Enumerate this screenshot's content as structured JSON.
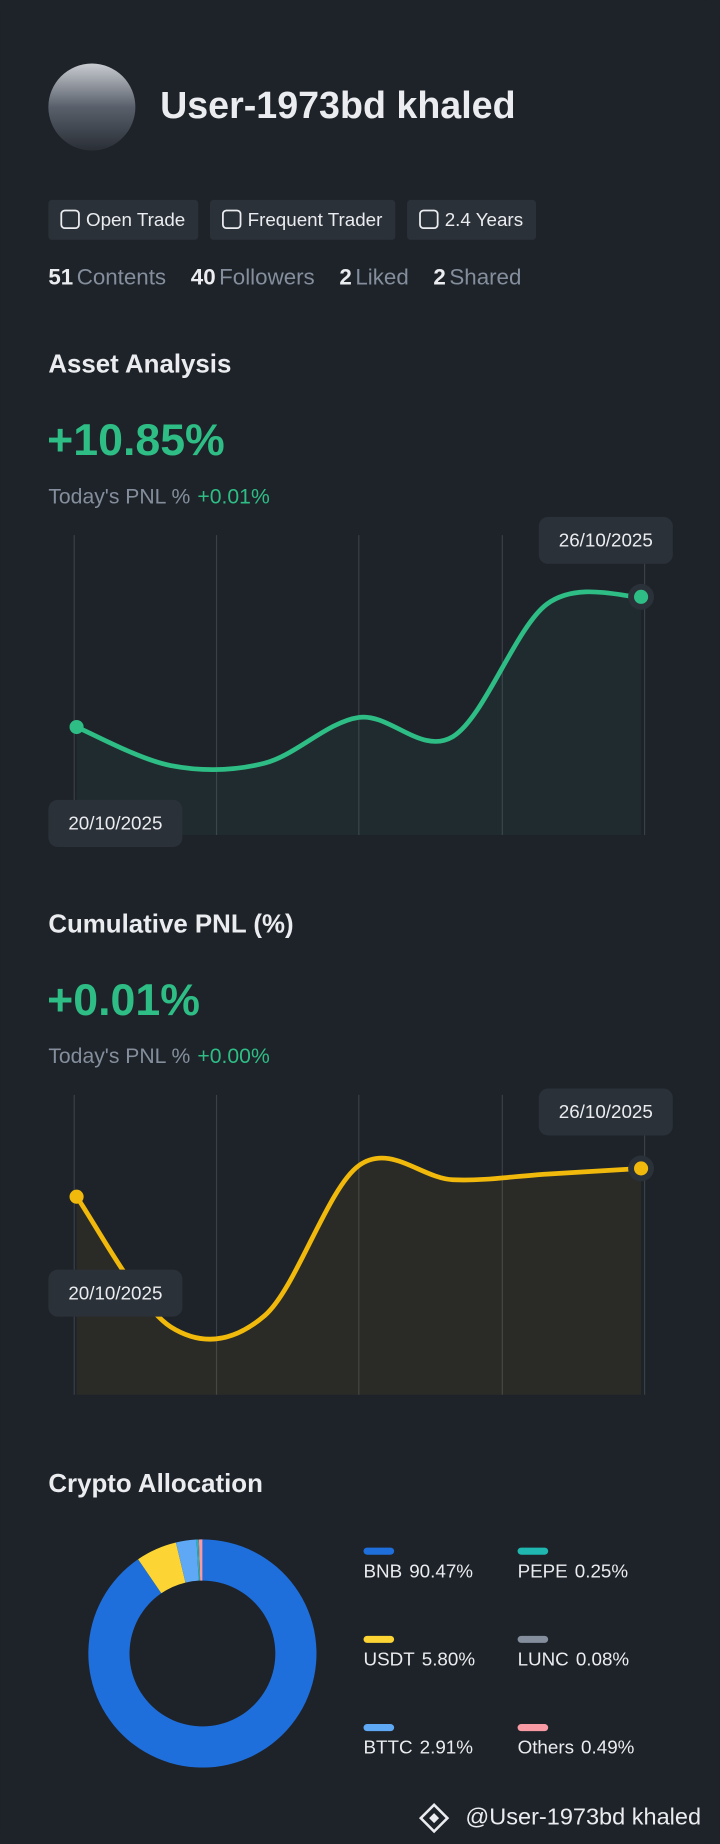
{
  "profile": {
    "name": "User-1973bd khaled",
    "tags": [
      "Open Trade",
      "Frequent Trader",
      "2.4 Years"
    ],
    "stats": [
      {
        "value": 51,
        "label": "Contents"
      },
      {
        "value": 40,
        "label": "Followers"
      },
      {
        "value": 2,
        "label": "Liked"
      },
      {
        "value": 2,
        "label": "Shared"
      }
    ]
  },
  "chart_data": [
    {
      "type": "line",
      "title": "Asset Analysis",
      "headline": "+10.85%",
      "pnl_label": "Today's PNL %",
      "pnl_value": "+0.01%",
      "categories": [
        "20/10/2025",
        null,
        null,
        null,
        null,
        null,
        "26/10/2025"
      ],
      "values": [
        0,
        -3.21,
        -3.01,
        0.8,
        -0.8,
        10.25,
        10.85
      ],
      "ylim": [
        -9,
        16
      ],
      "color": "#2ebd85"
    },
    {
      "type": "line",
      "title": "Cumulative PNL (%)",
      "headline": "+0.01%",
      "pnl_label": "Today's PNL %",
      "pnl_value": "+0.00%",
      "categories": [
        "20/10/2025",
        null,
        null,
        null,
        null,
        null,
        "26/10/2025"
      ],
      "values": [
        0,
        -0.046,
        -0.042,
        0.011,
        0.006,
        0.008,
        0.01
      ],
      "ylim": [
        -0.07,
        0.036
      ],
      "color": "#f0b90b"
    },
    {
      "type": "pie",
      "title": "Crypto Allocation",
      "categories": [
        "BNB",
        "USDT",
        "BTTC",
        "PEPE",
        "LUNC",
        "Others"
      ],
      "values": [
        90.47,
        5.8,
        2.91,
        0.25,
        0.08,
        0.49
      ],
      "value_labels": [
        "90.47%",
        "5.80%",
        "2.91%",
        "0.25%",
        "0.08%",
        "0.49%"
      ],
      "colors": [
        "#1e6fdc",
        "#fcd535",
        "#5ea8f5",
        "#1fb7b0",
        "#848e9c",
        "#f79aa3"
      ]
    }
  ],
  "footer": "@User-1973bd khaled"
}
